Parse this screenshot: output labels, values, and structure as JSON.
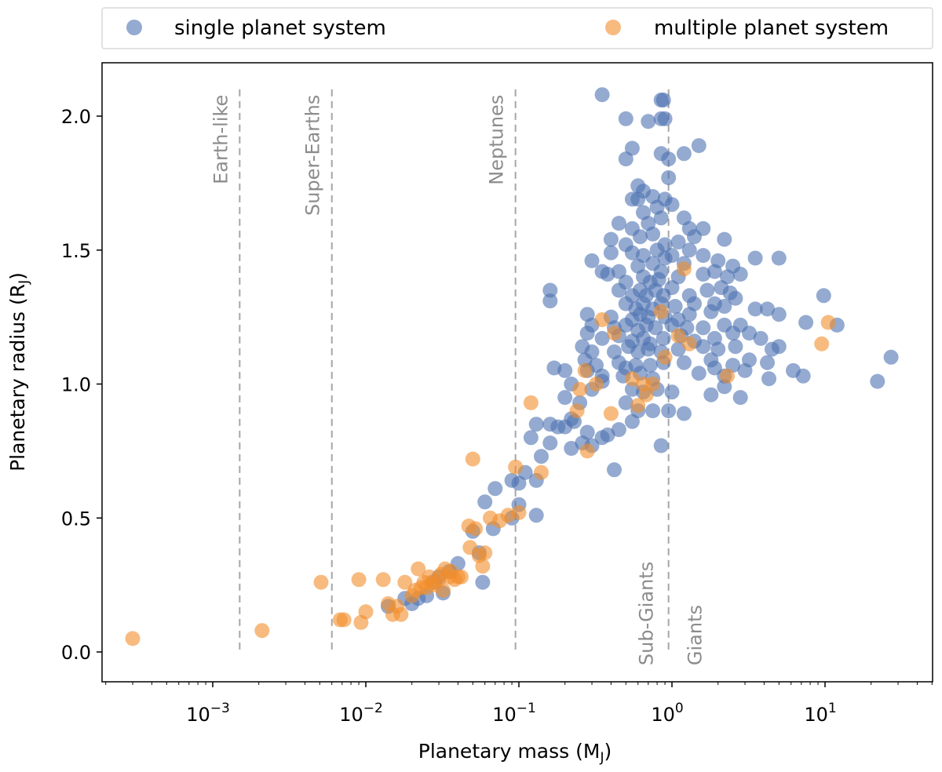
{
  "chart_data": {
    "type": "scatter",
    "xscale": "log",
    "xlabel": "Planetary mass (M",
    "xlabel_sub": "J",
    "xlabel_close": ")",
    "ylabel": "Planetary radius (R",
    "ylabel_sub": "J",
    "ylabel_close": ")",
    "xlim": [
      0.0002,
      50
    ],
    "ylim": [
      -0.1,
      2.2
    ],
    "x_ticks": [
      {
        "value": 0.001,
        "base": "10",
        "exp": "−3"
      },
      {
        "value": 0.01,
        "base": "10",
        "exp": "−2"
      },
      {
        "value": 0.1,
        "base": "10",
        "exp": "−1"
      },
      {
        "value": 1,
        "base": "10",
        "exp": "0"
      },
      {
        "value": 10,
        "base": "10",
        "exp": "1"
      }
    ],
    "y_ticks": [
      {
        "value": 0.0,
        "label": "0.0"
      },
      {
        "value": 0.5,
        "label": "0.5"
      },
      {
        "value": 1.0,
        "label": "1.0"
      },
      {
        "value": 1.5,
        "label": "1.5"
      },
      {
        "value": 2.0,
        "label": "2.0"
      }
    ],
    "grid": false,
    "legend_position": "top",
    "legend": [
      {
        "label": "single planet system",
        "color": "#4c72b0"
      },
      {
        "label": "multiple planet system",
        "color": "#f28e2b"
      }
    ],
    "reference_lines": [
      {
        "x": 0.0015,
        "label": "Earth-like",
        "label_anchor": "top"
      },
      {
        "x": 0.006,
        "label": "Super-Earths",
        "label_anchor": "top"
      },
      {
        "x": 0.095,
        "label": "Neptunes",
        "label_anchor": "top"
      },
      {
        "x": 0.95,
        "label": "Sub-Giants",
        "label_anchor": "bottom-left"
      },
      {
        "x": 0.95,
        "label": "Giants",
        "label_anchor": "bottom-right"
      }
    ],
    "series": [
      {
        "name": "single planet system",
        "color": "#4c72b0",
        "points": [
          [
            0.35,
            2.08
          ],
          [
            0.85,
            2.06
          ],
          [
            0.88,
            2.06
          ],
          [
            0.5,
            1.99
          ],
          [
            0.7,
            1.98
          ],
          [
            0.85,
            1.99
          ],
          [
            0.9,
            1.99
          ],
          [
            0.55,
            1.88
          ],
          [
            1.5,
            1.89
          ],
          [
            0.85,
            1.86
          ],
          [
            0.95,
            1.84
          ],
          [
            1.2,
            1.86
          ],
          [
            0.5,
            1.84
          ],
          [
            0.95,
            1.77
          ],
          [
            0.6,
            1.74
          ],
          [
            0.65,
            1.72
          ],
          [
            0.55,
            1.69
          ],
          [
            0.6,
            1.69
          ],
          [
            0.75,
            1.7
          ],
          [
            0.9,
            1.69
          ],
          [
            1.0,
            1.67
          ],
          [
            0.65,
            1.64
          ],
          [
            0.8,
            1.66
          ],
          [
            0.85,
            1.62
          ],
          [
            1.2,
            1.62
          ],
          [
            0.45,
            1.6
          ],
          [
            0.55,
            1.58
          ],
          [
            0.7,
            1.6
          ],
          [
            1.3,
            1.58
          ],
          [
            1.6,
            1.58
          ],
          [
            0.4,
            1.54
          ],
          [
            0.5,
            1.52
          ],
          [
            0.62,
            1.55
          ],
          [
            0.75,
            1.56
          ],
          [
            0.9,
            1.52
          ],
          [
            1.1,
            1.53
          ],
          [
            1.4,
            1.55
          ],
          [
            2.2,
            1.54
          ],
          [
            0.4,
            1.49
          ],
          [
            0.55,
            1.49
          ],
          [
            0.65,
            1.48
          ],
          [
            0.8,
            1.5
          ],
          [
            0.9,
            1.47
          ],
          [
            1.0,
            1.48
          ],
          [
            1.3,
            1.5
          ],
          [
            1.6,
            1.48
          ],
          [
            3.5,
            1.47
          ],
          [
            5.0,
            1.47
          ],
          [
            0.3,
            1.46
          ],
          [
            0.35,
            1.42
          ],
          [
            0.45,
            1.42
          ],
          [
            0.6,
            1.44
          ],
          [
            0.75,
            1.45
          ],
          [
            0.85,
            1.42
          ],
          [
            1.2,
            1.45
          ],
          [
            2.0,
            1.46
          ],
          [
            2.5,
            1.44
          ],
          [
            0.38,
            1.41
          ],
          [
            0.5,
            1.38
          ],
          [
            0.65,
            1.4
          ],
          [
            0.72,
            1.38
          ],
          [
            0.82,
            1.39
          ],
          [
            1.1,
            1.4
          ],
          [
            1.6,
            1.41
          ],
          [
            1.9,
            1.42
          ],
          [
            2.3,
            1.4
          ],
          [
            2.8,
            1.41
          ],
          [
            0.16,
            1.35
          ],
          [
            0.16,
            1.31
          ],
          [
            0.45,
            1.35
          ],
          [
            0.55,
            1.33
          ],
          [
            0.62,
            1.35
          ],
          [
            0.68,
            1.33
          ],
          [
            0.78,
            1.35
          ],
          [
            0.88,
            1.33
          ],
          [
            1.0,
            1.36
          ],
          [
            1.3,
            1.33
          ],
          [
            1.7,
            1.35
          ],
          [
            2.1,
            1.36
          ],
          [
            2.4,
            1.34
          ],
          [
            9.8,
            1.33
          ],
          [
            0.5,
            1.3
          ],
          [
            0.58,
            1.28
          ],
          [
            0.65,
            1.3
          ],
          [
            0.75,
            1.28
          ],
          [
            0.85,
            1.3
          ],
          [
            1.05,
            1.29
          ],
          [
            1.4,
            1.3
          ],
          [
            1.9,
            1.3
          ],
          [
            2.2,
            1.29
          ],
          [
            2.6,
            1.32
          ],
          [
            0.28,
            1.26
          ],
          [
            0.4,
            1.25
          ],
          [
            0.55,
            1.24
          ],
          [
            0.62,
            1.26
          ],
          [
            0.7,
            1.25
          ],
          [
            0.9,
            1.25
          ],
          [
            1.1,
            1.24
          ],
          [
            1.3,
            1.26
          ],
          [
            1.8,
            1.27
          ],
          [
            3.5,
            1.28
          ],
          [
            4.2,
            1.28
          ],
          [
            5.0,
            1.26
          ],
          [
            0.3,
            1.22
          ],
          [
            0.42,
            1.21
          ],
          [
            0.5,
            1.22
          ],
          [
            0.6,
            1.2
          ],
          [
            0.68,
            1.22
          ],
          [
            0.78,
            1.21
          ],
          [
            1.0,
            1.22
          ],
          [
            1.25,
            1.21
          ],
          [
            1.6,
            1.21
          ],
          [
            2.2,
            1.22
          ],
          [
            2.8,
            1.22
          ],
          [
            7.5,
            1.23
          ],
          [
            12,
            1.22
          ],
          [
            0.28,
            1.19
          ],
          [
            0.35,
            1.17
          ],
          [
            0.45,
            1.18
          ],
          [
            0.55,
            1.16
          ],
          [
            0.65,
            1.17
          ],
          [
            0.72,
            1.15
          ],
          [
            0.88,
            1.17
          ],
          [
            1.15,
            1.18
          ],
          [
            1.4,
            1.16
          ],
          [
            1.9,
            1.17
          ],
          [
            2.5,
            1.19
          ],
          [
            3.2,
            1.19
          ],
          [
            3.8,
            1.17
          ],
          [
            0.26,
            1.14
          ],
          [
            0.3,
            1.12
          ],
          [
            0.42,
            1.12
          ],
          [
            0.52,
            1.14
          ],
          [
            0.6,
            1.12
          ],
          [
            0.7,
            1.13
          ],
          [
            0.85,
            1.12
          ],
          [
            1.1,
            1.13
          ],
          [
            1.6,
            1.14
          ],
          [
            2.0,
            1.13
          ],
          [
            2.6,
            1.14
          ],
          [
            4.5,
            1.13
          ],
          [
            5.0,
            1.14
          ],
          [
            0.27,
            1.09
          ],
          [
            0.32,
            1.07
          ],
          [
            0.45,
            1.08
          ],
          [
            0.5,
            1.06
          ],
          [
            0.58,
            1.07
          ],
          [
            0.72,
            1.07
          ],
          [
            0.88,
            1.08
          ],
          [
            1.2,
            1.08
          ],
          [
            1.8,
            1.09
          ],
          [
            2.5,
            1.07
          ],
          [
            3.2,
            1.09
          ],
          [
            4.2,
            1.08
          ],
          [
            27,
            1.1
          ],
          [
            0.17,
            1.06
          ],
          [
            0.2,
            1.05
          ],
          [
            0.28,
            1.05
          ],
          [
            0.35,
            1.03
          ],
          [
            0.48,
            1.03
          ],
          [
            0.62,
            1.04
          ],
          [
            0.75,
            1.02
          ],
          [
            1.5,
            1.04
          ],
          [
            1.9,
            1.06
          ],
          [
            2.2,
            1.03
          ],
          [
            3.0,
            1.05
          ],
          [
            4.3,
            1.02
          ],
          [
            6.2,
            1.05
          ],
          [
            7.2,
            1.03
          ],
          [
            22,
            1.01
          ],
          [
            0.22,
            1.0
          ],
          [
            0.3,
            0.98
          ],
          [
            0.35,
            1.01
          ],
          [
            0.55,
            0.98
          ],
          [
            0.65,
            0.97
          ],
          [
            0.8,
            0.98
          ],
          [
            1.0,
            0.97
          ],
          [
            1.8,
            0.96
          ],
          [
            2.2,
            0.99
          ],
          [
            2.8,
            0.95
          ],
          [
            0.2,
            0.95
          ],
          [
            0.25,
            0.93
          ],
          [
            0.5,
            0.93
          ],
          [
            0.6,
            0.9
          ],
          [
            0.75,
            0.9
          ],
          [
            0.95,
            0.9
          ],
          [
            1.2,
            0.89
          ],
          [
            0.22,
            0.87
          ],
          [
            0.2,
            0.84
          ],
          [
            0.13,
            0.85
          ],
          [
            0.16,
            0.85
          ],
          [
            0.18,
            0.84
          ],
          [
            0.23,
            0.86
          ],
          [
            0.28,
            0.82
          ],
          [
            0.35,
            0.8
          ],
          [
            0.45,
            0.83
          ],
          [
            0.55,
            0.86
          ],
          [
            0.38,
            0.81
          ],
          [
            0.12,
            0.8
          ],
          [
            0.16,
            0.78
          ],
          [
            0.26,
            0.78
          ],
          [
            0.22,
            0.76
          ],
          [
            0.3,
            0.77
          ],
          [
            0.14,
            0.73
          ],
          [
            0.85,
            0.77
          ],
          [
            0.42,
            0.68
          ],
          [
            0.11,
            0.67
          ],
          [
            0.13,
            0.64
          ],
          [
            0.09,
            0.64
          ],
          [
            0.1,
            0.63
          ],
          [
            0.07,
            0.61
          ],
          [
            0.06,
            0.56
          ],
          [
            0.1,
            0.55
          ],
          [
            0.09,
            0.5
          ],
          [
            0.13,
            0.51
          ],
          [
            0.068,
            0.46
          ],
          [
            0.05,
            0.45
          ],
          [
            0.055,
            0.37
          ],
          [
            0.058,
            0.26
          ],
          [
            0.04,
            0.33
          ],
          [
            0.035,
            0.3
          ],
          [
            0.03,
            0.28
          ],
          [
            0.028,
            0.26
          ],
          [
            0.032,
            0.22
          ],
          [
            0.025,
            0.21
          ],
          [
            0.022,
            0.2
          ],
          [
            0.02,
            0.18
          ],
          [
            0.014,
            0.17
          ],
          [
            0.018,
            0.2
          ]
        ]
      },
      {
        "name": "multiple planet system",
        "color": "#f28e2b",
        "points": [
          [
            0.0003,
            0.05
          ],
          [
            0.0021,
            0.08
          ],
          [
            0.0051,
            0.26
          ],
          [
            0.0068,
            0.12
          ],
          [
            0.0072,
            0.12
          ],
          [
            0.009,
            0.27
          ],
          [
            0.0093,
            0.11
          ],
          [
            0.01,
            0.15
          ],
          [
            0.013,
            0.27
          ],
          [
            0.014,
            0.18
          ],
          [
            0.015,
            0.14
          ],
          [
            0.016,
            0.17
          ],
          [
            0.017,
            0.14
          ],
          [
            0.018,
            0.26
          ],
          [
            0.02,
            0.21
          ],
          [
            0.021,
            0.23
          ],
          [
            0.022,
            0.31
          ],
          [
            0.023,
            0.24
          ],
          [
            0.024,
            0.26
          ],
          [
            0.025,
            0.24
          ],
          [
            0.026,
            0.28
          ],
          [
            0.027,
            0.26
          ],
          [
            0.028,
            0.25
          ],
          [
            0.03,
            0.27
          ],
          [
            0.031,
            0.29
          ],
          [
            0.032,
            0.23
          ],
          [
            0.033,
            0.31
          ],
          [
            0.035,
            0.28
          ],
          [
            0.036,
            0.3
          ],
          [
            0.038,
            0.27
          ],
          [
            0.04,
            0.28
          ],
          [
            0.042,
            0.28
          ],
          [
            0.047,
            0.47
          ],
          [
            0.048,
            0.39
          ],
          [
            0.05,
            0.72
          ],
          [
            0.052,
            0.46
          ],
          [
            0.055,
            0.36
          ],
          [
            0.058,
            0.32
          ],
          [
            0.06,
            0.37
          ],
          [
            0.065,
            0.5
          ],
          [
            0.075,
            0.49
          ],
          [
            0.085,
            0.51
          ],
          [
            0.095,
            0.69
          ],
          [
            0.1,
            0.52
          ],
          [
            0.12,
            0.93
          ],
          [
            0.14,
            0.67
          ],
          [
            0.24,
            0.9
          ],
          [
            0.25,
            0.98
          ],
          [
            0.27,
            1.05
          ],
          [
            0.28,
            0.75
          ],
          [
            0.32,
            1.0
          ],
          [
            0.35,
            1.24
          ],
          [
            0.4,
            0.89
          ],
          [
            0.42,
            1.19
          ],
          [
            0.55,
            1.02
          ],
          [
            0.6,
            0.92
          ],
          [
            0.65,
            1.0
          ],
          [
            0.68,
            0.96
          ],
          [
            0.75,
            1.0
          ],
          [
            0.85,
            1.27
          ],
          [
            0.9,
            1.1
          ],
          [
            1.1,
            1.18
          ],
          [
            1.2,
            1.43
          ],
          [
            1.3,
            1.15
          ],
          [
            2.3,
            1.03
          ],
          [
            9.5,
            1.15
          ],
          [
            10.5,
            1.23
          ]
        ]
      }
    ]
  }
}
